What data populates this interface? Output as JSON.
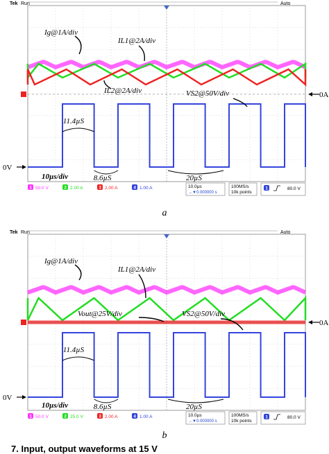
{
  "chart_data": [
    {
      "type": "line",
      "panel_caption": "a",
      "header": {
        "brand": "Tek",
        "run": "Run",
        "trigger_mode": "Auto"
      },
      "timebase_label": "10µs/div",
      "zero_current_label": "0A",
      "zero_voltage_label": "0V",
      "series": [
        {
          "name": "Ig@1A/div",
          "ch": "1",
          "scale": "50.0 V",
          "color": "#ff33ff",
          "shape": "ripple"
        },
        {
          "name": "IL1@2A/div",
          "ch": "2",
          "scale": "2.00 A",
          "color": "#22dd22",
          "shape": "triangle"
        },
        {
          "name": "IL2@2A/div",
          "ch": "3",
          "scale": "2.00 A",
          "color": "#ee2222",
          "shape": "triangle"
        },
        {
          "name": "VS2@50V/div",
          "ch": "4",
          "scale": "1.00 A",
          "color": "#3344dd",
          "shape": "square"
        }
      ],
      "annotations": {
        "on_time": "11.4µS",
        "off_time": "8.6µS",
        "period": "20µS"
      },
      "status": {
        "hdiv": "10.0µs",
        "delay": "→▼0.000000 s",
        "rate": "100MS/s",
        "points": "10k points",
        "trig_ch": "1",
        "trig_level": "80.0 V"
      }
    },
    {
      "type": "line",
      "panel_caption": "b",
      "header": {
        "brand": "Tek",
        "run": "Run",
        "trigger_mode": "Auto"
      },
      "timebase_label": "10µs/div",
      "zero_current_label": "0A",
      "zero_voltage_label": "0V",
      "series": [
        {
          "name": "Ig@1A/div",
          "ch": "1",
          "scale": "50.0 V",
          "color": "#ff33ff",
          "shape": "ripple"
        },
        {
          "name": "IL1@2A/div",
          "ch": "2",
          "scale": "25.0 V",
          "color": "#22dd22",
          "shape": "triangle"
        },
        {
          "name": "Vout@25V/div",
          "ch": "3",
          "scale": "2.00 A",
          "color": "#ee2222",
          "shape": "flat"
        },
        {
          "name": "VS2@50V/div",
          "ch": "4",
          "scale": "1.00 A",
          "color": "#3344dd",
          "shape": "square"
        }
      ],
      "annotations": {
        "on_time": "11.4µS",
        "off_time": "8.6µS",
        "period": "20µS"
      },
      "status": {
        "hdiv": "10.0µs",
        "delay": "→▼0.000000 s",
        "rate": "100MS/s",
        "points": "10k points",
        "trig_ch": "1",
        "trig_level": "80.0 V"
      }
    }
  ],
  "footer_text": "7. Input, output waveforms at 15 V"
}
